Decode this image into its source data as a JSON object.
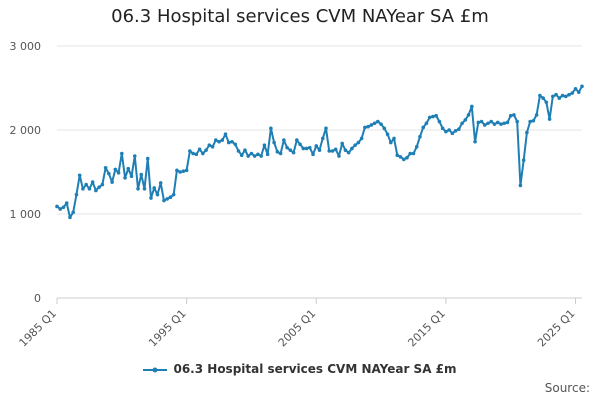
{
  "chart_data": {
    "type": "line",
    "title": "06.3 Hospital services CVM NAYear SA £m",
    "xlabel": "",
    "ylabel": "",
    "ylim": [
      0,
      3000
    ],
    "yticks": [
      0,
      1000,
      2000,
      3000
    ],
    "ytick_labels": [
      "0",
      "1 000",
      "2 000",
      "3 000"
    ],
    "xticks": [
      "1985 Q1",
      "1995 Q1",
      "2005 Q1",
      "2015 Q1",
      "2025 Q1"
    ],
    "start": "1985 Q1",
    "end": "2025 Q1",
    "grid": true,
    "legend_position": "bottom",
    "series": [
      {
        "name": "06.3 Hospital services CVM NAYear SA £m",
        "color": "#1f7fb5",
        "values": [
          1090,
          1060,
          1080,
          1130,
          960,
          1020,
          1230,
          1460,
          1300,
          1350,
          1300,
          1380,
          1280,
          1320,
          1350,
          1550,
          1480,
          1380,
          1530,
          1490,
          1720,
          1430,
          1540,
          1450,
          1690,
          1300,
          1470,
          1300,
          1660,
          1190,
          1310,
          1230,
          1370,
          1160,
          1180,
          1200,
          1230,
          1520,
          1500,
          1510,
          1520,
          1750,
          1720,
          1710,
          1770,
          1720,
          1760,
          1820,
          1800,
          1880,
          1860,
          1880,
          1950,
          1850,
          1860,
          1830,
          1750,
          1700,
          1760,
          1690,
          1720,
          1690,
          1710,
          1690,
          1820,
          1710,
          2020,
          1850,
          1740,
          1720,
          1880,
          1790,
          1760,
          1730,
          1880,
          1830,
          1780,
          1780,
          1790,
          1710,
          1810,
          1760,
          1900,
          2020,
          1750,
          1750,
          1770,
          1690,
          1840,
          1760,
          1730,
          1780,
          1820,
          1850,
          1900,
          2030,
          2040,
          2060,
          2080,
          2100,
          2070,
          2020,
          1950,
          1850,
          1900,
          1700,
          1680,
          1650,
          1670,
          1720,
          1720,
          1800,
          1920,
          2030,
          2080,
          2150,
          2160,
          2170,
          2100,
          2020,
          1980,
          2000,
          1960,
          1990,
          2010,
          2080,
          2120,
          2180,
          2280,
          1860,
          2090,
          2100,
          2060,
          2080,
          2100,
          2070,
          2090,
          2070,
          2080,
          2090,
          2170,
          2180,
          2100,
          1340,
          1640,
          1970,
          2100,
          2110,
          2180,
          2410,
          2380,
          2330,
          2130,
          2400,
          2420,
          2380,
          2410,
          2400,
          2420,
          2440,
          2490,
          2450,
          2520
        ]
      }
    ]
  },
  "legend": {
    "label": "06.3 Hospital services CVM NAYear SA £m"
  },
  "source_label": "Source:"
}
